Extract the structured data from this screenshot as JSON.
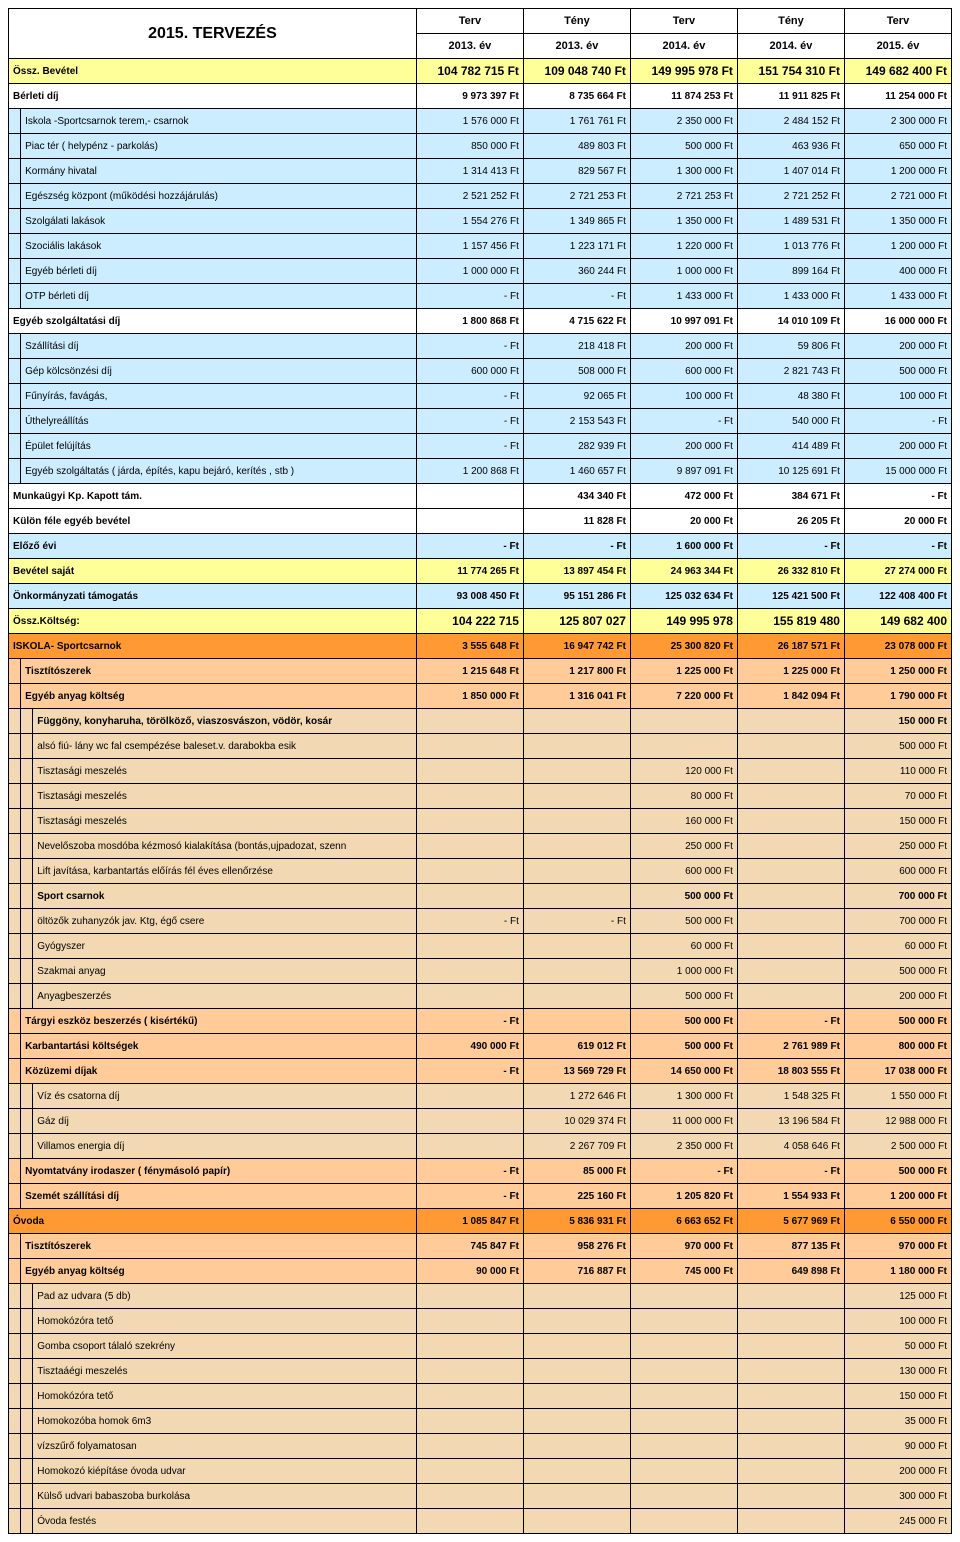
{
  "title": "2015. TERVEZÉS",
  "headers": {
    "h1": [
      "Terv",
      "Tény",
      "Terv",
      "Tény",
      "Terv"
    ],
    "h2": [
      "2013. év",
      "2013. év",
      "2014. év",
      "2014. év",
      "2015. év"
    ]
  },
  "rows": [
    {
      "lbl": "Össz. Bevétel",
      "v": [
        "104 782 715 Ft",
        "109 048 740 Ft",
        "149 995 978 Ft",
        "151 754 310 Ft",
        "149 682 400 Ft"
      ],
      "cls": "cat-yellow",
      "bold": true,
      "bignum": true,
      "indent": 0
    },
    {
      "lbl": "Bérleti díj",
      "v": [
        "9 973 397 Ft",
        "8 735 664 Ft",
        "11 874 253 Ft",
        "11 911 825 Ft",
        "11 254 000 Ft"
      ],
      "cls": "cat-white",
      "bold": true,
      "indent": 0
    },
    {
      "lbl": "Iskola -Sportcsarnok terem,- csarnok",
      "v": [
        "1 576 000 Ft",
        "1 761 761 Ft",
        "2 350 000 Ft",
        "2 484 152 Ft",
        "2 300 000 Ft"
      ],
      "cls": "cat-blue",
      "indent": 1
    },
    {
      "lbl": "Piac tér ( helypénz - parkolás)",
      "v": [
        "850 000 Ft",
        "489 803 Ft",
        "500 000 Ft",
        "463 936 Ft",
        "650 000 Ft"
      ],
      "cls": "cat-blue",
      "indent": 1
    },
    {
      "lbl": "Kormány hivatal",
      "v": [
        "1 314 413 Ft",
        "829 567 Ft",
        "1 300 000 Ft",
        "1 407 014 Ft",
        "1 200 000 Ft"
      ],
      "cls": "cat-blue",
      "indent": 1
    },
    {
      "lbl": "Egészség központ (működési hozzájárulás)",
      "v": [
        "2 521 252 Ft",
        "2 721 253 Ft",
        "2 721 253 Ft",
        "2 721 252 Ft",
        "2 721 000 Ft"
      ],
      "cls": "cat-blue",
      "indent": 1
    },
    {
      "lbl": "Szolgálati lakások",
      "v": [
        "1 554 276 Ft",
        "1 349 865 Ft",
        "1 350 000 Ft",
        "1 489 531 Ft",
        "1 350 000 Ft"
      ],
      "cls": "cat-blue",
      "indent": 1
    },
    {
      "lbl": "Szociális lakások",
      "v": [
        "1 157 456 Ft",
        "1 223 171 Ft",
        "1 220 000 Ft",
        "1 013 776 Ft",
        "1 200 000 Ft"
      ],
      "cls": "cat-blue",
      "indent": 1
    },
    {
      "lbl": "Egyéb bérleti díj",
      "v": [
        "1 000 000 Ft",
        "360 244 Ft",
        "1 000 000 Ft",
        "899 164 Ft",
        "400 000 Ft"
      ],
      "cls": "cat-blue",
      "indent": 1
    },
    {
      "lbl": "OTP bérleti díj",
      "v": [
        "- Ft",
        "- Ft",
        "1 433 000 Ft",
        "1 433 000 Ft",
        "1 433 000 Ft"
      ],
      "cls": "cat-blue",
      "indent": 1
    },
    {
      "lbl": "Egyéb szolgáltatási díj",
      "v": [
        "1 800 868 Ft",
        "4 715 622 Ft",
        "10 997 091 Ft",
        "14 010 109 Ft",
        "16 000 000 Ft"
      ],
      "cls": "cat-white",
      "bold": true,
      "indent": 0
    },
    {
      "lbl": "Szállítási díj",
      "v": [
        "- Ft",
        "218 418 Ft",
        "200 000 Ft",
        "59 806 Ft",
        "200 000 Ft"
      ],
      "cls": "cat-blue",
      "indent": 1
    },
    {
      "lbl": "Gép kölcsönzési díj",
      "v": [
        "600 000 Ft",
        "508 000 Ft",
        "600 000 Ft",
        "2 821 743 Ft",
        "500 000 Ft"
      ],
      "cls": "cat-blue",
      "indent": 1
    },
    {
      "lbl": "Fűnyírás, favágás,",
      "v": [
        "- Ft",
        "92 065 Ft",
        "100 000 Ft",
        "48 380 Ft",
        "100 000 Ft"
      ],
      "cls": "cat-blue",
      "indent": 1
    },
    {
      "lbl": "Úthelyreállítás",
      "v": [
        "- Ft",
        "2 153 543 Ft",
        "- Ft",
        "540 000 Ft",
        "- Ft"
      ],
      "cls": "cat-blue",
      "indent": 1
    },
    {
      "lbl": "Épület felújítás",
      "v": [
        "- Ft",
        "282 939 Ft",
        "200 000 Ft",
        "414 489 Ft",
        "200 000 Ft"
      ],
      "cls": "cat-blue",
      "indent": 1
    },
    {
      "lbl": "Egyéb szolgáltatás ( járda, építés, kapu bejáró, kerítés , stb )",
      "v": [
        "1 200 868 Ft",
        "1 460 657 Ft",
        "9 897 091 Ft",
        "10 125 691 Ft",
        "15 000 000 Ft"
      ],
      "cls": "cat-blue",
      "indent": 1
    },
    {
      "lbl": "Munkaügyi Kp. Kapott tám.",
      "v": [
        "",
        "434 340 Ft",
        "472 000 Ft",
        "384 671 Ft",
        "- Ft"
      ],
      "cls": "cat-white",
      "bold": true,
      "indent": 0
    },
    {
      "lbl": "Külön féle egyéb bevétel",
      "v": [
        "",
        "11 828 Ft",
        "20 000 Ft",
        "26 205 Ft",
        "20 000 Ft"
      ],
      "cls": "cat-white",
      "bold": true,
      "indent": 0
    },
    {
      "lbl": "Előző évi",
      "v": [
        "- Ft",
        "- Ft",
        "1 600 000 Ft",
        "- Ft",
        "- Ft"
      ],
      "cls": "cat-blue",
      "bold": true,
      "indent": 0
    },
    {
      "lbl": "Bevétel    saját",
      "v": [
        "11 774 265 Ft",
        "13 897 454 Ft",
        "24 963 344 Ft",
        "26 332 810 Ft",
        "27 274 000 Ft"
      ],
      "cls": "cat-yellow",
      "bold": true,
      "indent": 0
    },
    {
      "lbl": "Önkormányzati támogatás",
      "v": [
        "93 008 450 Ft",
        "95 151 286 Ft",
        "125 032 634 Ft",
        "125 421 500 Ft",
        "122 408 400 Ft"
      ],
      "cls": "cat-blue",
      "bold": true,
      "indent": 0
    },
    {
      "lbl": "Össz.Költség:",
      "v": [
        "104 222 715",
        "125 807 027",
        "149 995 978",
        "155 819 480",
        "149 682 400"
      ],
      "cls": "cat-yellow",
      "bold": true,
      "bignum": true,
      "indent": 0
    },
    {
      "lbl": "ISKOLA- Sportcsarnok",
      "v": [
        "3 555 648 Ft",
        "16 947 742 Ft",
        "25 300 820 Ft",
        "26 187 571 Ft",
        "23 078 000 Ft"
      ],
      "cls": "cat-orange",
      "bold": true,
      "indent": 0
    },
    {
      "lbl": "Tisztítószerek",
      "v": [
        "1 215 648 Ft",
        "1 217 800 Ft",
        "1 225 000 Ft",
        "1 225 000 Ft",
        "1 250 000 Ft"
      ],
      "cls": "cat-orange-light",
      "bold": true,
      "indent": 1
    },
    {
      "lbl": "Egyéb anyag költség",
      "v": [
        "1 850 000 Ft",
        "1 316 041 Ft",
        "7 220 000 Ft",
        "1 842 094 Ft",
        "1 790 000 Ft"
      ],
      "cls": "cat-orange-light",
      "bold": true,
      "indent": 1
    },
    {
      "lbl": "Függöny, konyharuha, törölköző, viaszosvászon, vödör, kosár",
      "v": [
        "",
        "",
        "",
        "",
        "150 000 Ft"
      ],
      "cls": "cat-tan",
      "bold": true,
      "indent": 2
    },
    {
      "lbl": "alsó fiú- lány wc fal csempézése baleset.v. darabokba esik",
      "v": [
        "",
        "",
        "",
        "",
        "500 000 Ft"
      ],
      "cls": "cat-tan",
      "indent": 2
    },
    {
      "lbl": "Tisztasági meszelés",
      "v": [
        "",
        "",
        "120 000 Ft",
        "",
        "110 000 Ft"
      ],
      "cls": "cat-tan",
      "indent": 2
    },
    {
      "lbl": "Tisztasági meszelés",
      "v": [
        "",
        "",
        "80 000 Ft",
        "",
        "70 000 Ft"
      ],
      "cls": "cat-tan",
      "indent": 2
    },
    {
      "lbl": "Tisztasági meszelés",
      "v": [
        "",
        "",
        "160 000 Ft",
        "",
        "150 000 Ft"
      ],
      "cls": "cat-tan",
      "indent": 2
    },
    {
      "lbl": "Nevelőszoba mosdóba kézmosó kialakítása (bontás,ujpadozat, szenn",
      "v": [
        "",
        "",
        "250 000 Ft",
        "",
        "250 000 Ft"
      ],
      "cls": "cat-tan",
      "indent": 2
    },
    {
      "lbl": "Lift javítása, karbantartás előírás fél éves ellenőrzése",
      "v": [
        "",
        "",
        "600 000 Ft",
        "",
        "600 000 Ft"
      ],
      "cls": "cat-tan",
      "indent": 2
    },
    {
      "lbl": "Sport csarnok",
      "v": [
        "",
        "",
        "500 000 Ft",
        "",
        "700 000 Ft"
      ],
      "cls": "cat-tan",
      "bold": true,
      "indent": 2
    },
    {
      "lbl": "öltözők zuhanyzók jav. Ktg, égő csere",
      "v": [
        "- Ft",
        "- Ft",
        "500 000 Ft",
        "",
        "700 000 Ft"
      ],
      "cls": "cat-tan",
      "indent": 2
    },
    {
      "lbl": "Gyógyszer",
      "v": [
        "",
        "",
        "60 000 Ft",
        "",
        "60 000 Ft"
      ],
      "cls": "cat-tan",
      "indent": 2
    },
    {
      "lbl": "Szakmai anyag",
      "v": [
        "",
        "",
        "1 000 000 Ft",
        "",
        "500 000 Ft"
      ],
      "cls": "cat-tan",
      "indent": 2
    },
    {
      "lbl": "Anyagbeszerzés",
      "v": [
        "",
        "",
        "500 000 Ft",
        "",
        "200 000 Ft"
      ],
      "cls": "cat-tan",
      "indent": 2
    },
    {
      "lbl": "Tárgyi eszköz beszerzés ( kisértékű)",
      "v": [
        "- Ft",
        "",
        "500 000 Ft",
        "- Ft",
        "500 000 Ft"
      ],
      "cls": "cat-orange-light",
      "bold": true,
      "indent": 1
    },
    {
      "lbl": "Karbantartási költségek",
      "v": [
        "490 000 Ft",
        "619 012 Ft",
        "500 000 Ft",
        "2 761 989 Ft",
        "800 000 Ft"
      ],
      "cls": "cat-orange-light",
      "bold": true,
      "indent": 1
    },
    {
      "lbl": "Közüzemi díjak",
      "v": [
        "- Ft",
        "13 569 729 Ft",
        "14 650 000 Ft",
        "18 803 555 Ft",
        "17 038 000 Ft"
      ],
      "cls": "cat-orange-light",
      "bold": true,
      "indent": 1
    },
    {
      "lbl": "Víz és csatorna díj",
      "v": [
        "",
        "1 272 646 Ft",
        "1 300 000 Ft",
        "1 548 325 Ft",
        "1 550 000 Ft"
      ],
      "cls": "cat-tan",
      "indent": 2
    },
    {
      "lbl": "Gáz díj",
      "v": [
        "",
        "10 029 374 Ft",
        "11 000 000 Ft",
        "13 196 584 Ft",
        "12 988 000 Ft"
      ],
      "cls": "cat-tan",
      "indent": 2
    },
    {
      "lbl": "Villamos energia díj",
      "v": [
        "",
        "2 267 709 Ft",
        "2 350 000 Ft",
        "4 058 646 Ft",
        "2 500 000 Ft"
      ],
      "cls": "cat-tan",
      "indent": 2
    },
    {
      "lbl": "Nyomtatvány irodaszer ( fénymásoló papír)",
      "v": [
        "- Ft",
        "85 000 Ft",
        "- Ft",
        "- Ft",
        "500 000 Ft"
      ],
      "cls": "cat-orange-light",
      "bold": true,
      "indent": 1
    },
    {
      "lbl": "Szemét szállítási díj",
      "v": [
        "- Ft",
        "225 160 Ft",
        "1 205 820 Ft",
        "1 554 933 Ft",
        "1 200 000 Ft"
      ],
      "cls": "cat-orange-light",
      "bold": true,
      "indent": 1
    },
    {
      "lbl": "Óvoda",
      "v": [
        "1 085 847 Ft",
        "5 836 931 Ft",
        "6 663 652 Ft",
        "5 677 969 Ft",
        "6 550 000 Ft"
      ],
      "cls": "cat-orange",
      "bold": true,
      "indent": 0
    },
    {
      "lbl": "Tisztítószerek",
      "v": [
        "745 847 Ft",
        "958 276 Ft",
        "970 000 Ft",
        "877 135 Ft",
        "970 000 Ft"
      ],
      "cls": "cat-orange-light",
      "bold": true,
      "indent": 1
    },
    {
      "lbl": "Egyéb anyag költség",
      "v": [
        "90 000 Ft",
        "716 887 Ft",
        "745 000 Ft",
        "649 898 Ft",
        "1 180 000 Ft"
      ],
      "cls": "cat-orange-light",
      "bold": true,
      "indent": 1
    },
    {
      "lbl": "Pad az udvara (5 db)",
      "v": [
        "",
        "",
        "",
        "",
        "125 000 Ft"
      ],
      "cls": "cat-tan",
      "indent": 2
    },
    {
      "lbl": "Homokózóra tető",
      "v": [
        "",
        "",
        "",
        "",
        "100 000 Ft"
      ],
      "cls": "cat-tan",
      "indent": 2
    },
    {
      "lbl": "Gomba csoport tálaló szekrény",
      "v": [
        "",
        "",
        "",
        "",
        "50 000 Ft"
      ],
      "cls": "cat-tan",
      "indent": 2
    },
    {
      "lbl": "Tisztaáégi meszelés",
      "v": [
        "",
        "",
        "",
        "",
        "130 000 Ft"
      ],
      "cls": "cat-tan",
      "indent": 2
    },
    {
      "lbl": "Homokózóra tető",
      "v": [
        "",
        "",
        "",
        "",
        "150 000 Ft"
      ],
      "cls": "cat-tan",
      "indent": 2
    },
    {
      "lbl": "Homokozóba homok 6m3",
      "v": [
        "",
        "",
        "",
        "",
        "35 000 Ft"
      ],
      "cls": "cat-tan",
      "indent": 2
    },
    {
      "lbl": "vízszűrő folyamatosan",
      "v": [
        "",
        "",
        "",
        "",
        "90 000 Ft"
      ],
      "cls": "cat-tan",
      "indent": 2
    },
    {
      "lbl": "Homokozó kiépításe óvoda udvar",
      "v": [
        "",
        "",
        "",
        "",
        "200 000 Ft"
      ],
      "cls": "cat-tan",
      "indent": 2
    },
    {
      "lbl": "Külső udvari babaszoba burkolása",
      "v": [
        "",
        "",
        "",
        "",
        "300 000 Ft"
      ],
      "cls": "cat-tan",
      "indent": 2
    },
    {
      "lbl": "Óvoda festés",
      "v": [
        "",
        "",
        "",
        "",
        "245 000 Ft"
      ],
      "cls": "cat-tan",
      "indent": 2
    }
  ]
}
